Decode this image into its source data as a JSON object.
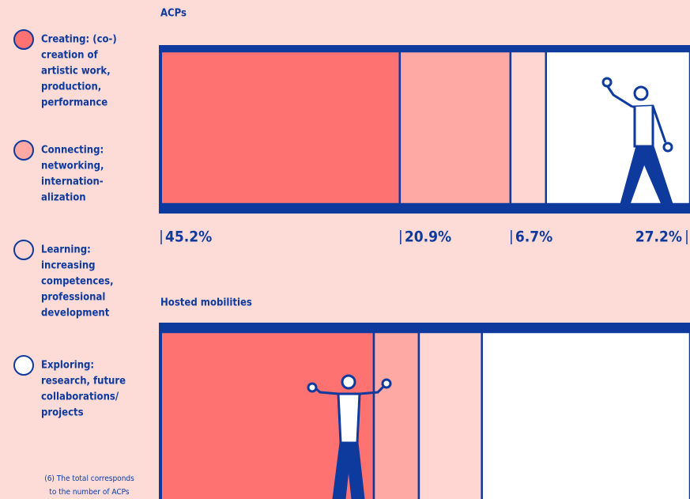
{
  "legend": [
    {
      "lines": [
        "Creating: (co-)",
        "creation of",
        "artistic work,",
        "production,",
        "performance"
      ],
      "color": "#ff7272"
    },
    {
      "lines": [
        "Connecting:",
        "networking,",
        "internation-",
        "alization"
      ],
      "color": "#ffa9a4"
    },
    {
      "lines": [
        "Learning:",
        "increasing",
        "competences,",
        "professional",
        "development"
      ],
      "color": "#ffd6d1"
    },
    {
      "lines": [
        "Exploring:",
        "research, future",
        "collaborations/",
        "projects"
      ],
      "color": "#ffffff"
    }
  ],
  "footnote": [
    "(6) The total corresponds",
    "to the number of ACPs"
  ],
  "chart_data": [
    {
      "type": "bar100",
      "title": "ACPs",
      "values": [
        45.2,
        20.9,
        6.7,
        27.2
      ],
      "value_labels": [
        "45.2%",
        "20.9%",
        "6.7%",
        "27.2%"
      ],
      "colors": [
        "#ff7272",
        "#ffa9a4",
        "#ffd6d1",
        "#ffffff"
      ]
    },
    {
      "type": "bar100",
      "title": "Hosted mobilities",
      "values": [
        40.3,
        8.5,
        11.9,
        39.3
      ],
      "colors": [
        "#ff7272",
        "#ffa9a4",
        "#ffd6d1",
        "#ffffff"
      ]
    }
  ]
}
